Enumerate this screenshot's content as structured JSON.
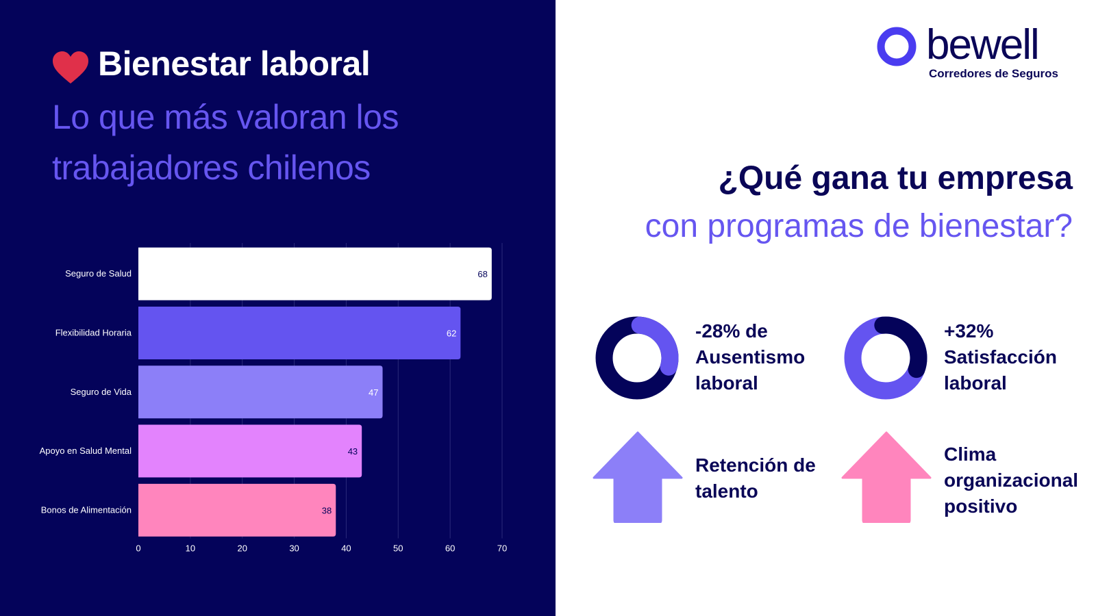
{
  "header": {
    "title": "Bienestar laboral",
    "subtitle_line1": "Lo que más valoran los",
    "subtitle_line2": "trabajadores chilenos",
    "heart_icon_color": "#e0304a"
  },
  "chart_data": {
    "type": "bar",
    "orientation": "horizontal",
    "categories": [
      "Seguro de Salud",
      "Flexibilidad Horaria",
      "Seguro de Vida",
      "Apoyo en Salud Mental",
      "Bonos de Alimentación"
    ],
    "values": [
      68,
      62,
      47,
      43,
      38
    ],
    "value_labels": [
      "68",
      "62",
      "47",
      "43",
      "38"
    ],
    "colors": [
      "#ffffff",
      "#6454f0",
      "#8c7ff8",
      "#e383fd",
      "#ff85bd"
    ],
    "label_colors": [
      "#04035a",
      "#ffffff",
      "#ffffff",
      "#04035a",
      "#04035a"
    ],
    "xlim": [
      0,
      70
    ],
    "xticks": [
      "0",
      "10",
      "20",
      "30",
      "40",
      "50",
      "60",
      "70"
    ],
    "grid": true,
    "title": "",
    "xlabel": "",
    "ylabel": ""
  },
  "brand": {
    "name": "bewell",
    "tagline": "Corredores de Seguros"
  },
  "question": {
    "line1": "¿Qué gana tu empresa",
    "line2": "con programas de bienestar?"
  },
  "benefits": [
    {
      "icon": "donut-icon",
      "value_percent": 28,
      "lines": [
        "-28% de",
        "Ausentismo",
        "laboral"
      ]
    },
    {
      "icon": "donut-icon",
      "value_percent": 32,
      "lines": [
        "+32%",
        "Satisfacción",
        "laboral"
      ]
    },
    {
      "icon": "arrow-up-icon",
      "color": "#8c7ff8",
      "lines": [
        "Retención de",
        "talento"
      ]
    },
    {
      "icon": "arrow-up-icon",
      "color": "#ff85bd",
      "lines": [
        "Clima",
        "organizacional",
        "positivo"
      ]
    }
  ],
  "colors": {
    "navy": "#04035a",
    "purple": "#6656f0",
    "dark_text": "#0a0657"
  }
}
